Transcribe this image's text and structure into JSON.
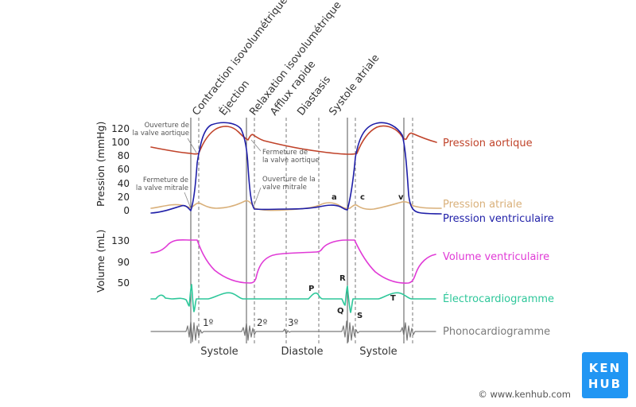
{
  "phases": [
    "Contraction isovolumétrique",
    "Éjection",
    "Relaxation isovolumétrique",
    "Afflux rapide",
    "Diastasis",
    "Systole atriale"
  ],
  "axes": {
    "pressure_title": "Pression (mmHg)",
    "pressure_ticks": [
      "120",
      "100",
      "80",
      "60",
      "40",
      "20",
      "0"
    ],
    "volume_title": "Volume (mL)",
    "volume_ticks": [
      "130",
      "90",
      "50"
    ]
  },
  "annotations": {
    "aortic_open_1": "Ouverture de",
    "aortic_open_2": "la valve aortique",
    "mitral_close_1": "Fermeture de",
    "mitral_close_2": "la valve mitrale",
    "aortic_close_1": "Fermeture de",
    "aortic_close_2": "la valve aortique",
    "mitral_open_1": "Ouverture de la",
    "mitral_open_2": "valve mitrale"
  },
  "wave_letters": {
    "a": "a",
    "c": "c",
    "v": "v",
    "P": "P",
    "R": "R",
    "Q": "Q",
    "S": "S",
    "T": "T"
  },
  "legend": {
    "aortic": {
      "label": "Pression aortique",
      "color": "#c0432a"
    },
    "atrial": {
      "label": "Pression atriale",
      "color": "#d9b07a"
    },
    "ventricular": {
      "label": "Pression ventriculaire",
      "color": "#1f1fa8"
    },
    "volume": {
      "label": "Volume ventriculaire",
      "color": "#e03ad6"
    },
    "ecg": {
      "label": "Électrocardiogramme",
      "color": "#2ec79a"
    },
    "phono": {
      "label": "Phonocardiogramme",
      "color": "#7a7a7a"
    }
  },
  "heart_sounds": [
    "1º",
    "2º",
    "3º"
  ],
  "cycle_labels": [
    "Systole",
    "Diastole",
    "Systole"
  ],
  "credit": "© www.kenhub.com",
  "logo": {
    "line1": "KEN",
    "line2": "HUB",
    "color": "#2196f3"
  }
}
